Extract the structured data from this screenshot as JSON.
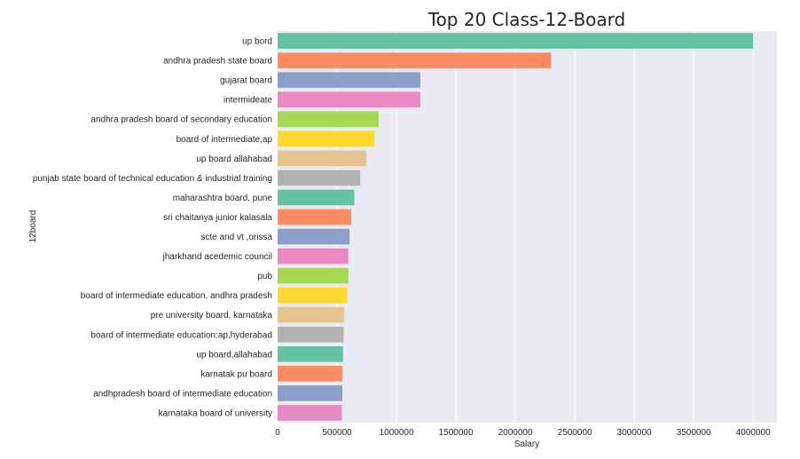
{
  "chart_data": {
    "type": "bar",
    "orientation": "horizontal",
    "title": "Top 20 Class-12-Board",
    "xlabel": "Salary",
    "ylabel": "12board",
    "xlim": [
      0,
      4200000
    ],
    "xticks": [
      0,
      500000,
      1000000,
      1500000,
      2000000,
      2500000,
      3000000,
      3500000,
      4000000
    ],
    "grid": true,
    "categories": [
      "up bord",
      "andhra pradesh state board",
      "gujarat board",
      "intermideate",
      "andhra pradesh board of secondary education",
      "board of intermediate,ap",
      "up board allahabad",
      "punjab state board of technical education & industrial training",
      "maharashtra board, pune",
      "sri chaitanya junior kalasala",
      "scte and vt ,orissa",
      "jharkhand acedemic council",
      "pub",
      "board of intermediate education, andhra pradesh",
      "pre university board, karnataka",
      "board of intermediate education:ap,hyderabad",
      "up board,allahabad",
      "karnatak pu board",
      "andhpradesh board of intermediate education",
      "karnataka board of university"
    ],
    "values": [
      4000000,
      2300000,
      1200000,
      1200000,
      850000,
      815000,
      745000,
      695000,
      645000,
      620000,
      605000,
      595000,
      595000,
      585000,
      560000,
      555000,
      550000,
      545000,
      545000,
      540000
    ],
    "colors": [
      "#66c2a5",
      "#fc8d62",
      "#8da0cb",
      "#e78ac3",
      "#a6d854",
      "#ffd92f",
      "#e5c494",
      "#b3b3b3"
    ],
    "background": "#eaeaf2"
  }
}
